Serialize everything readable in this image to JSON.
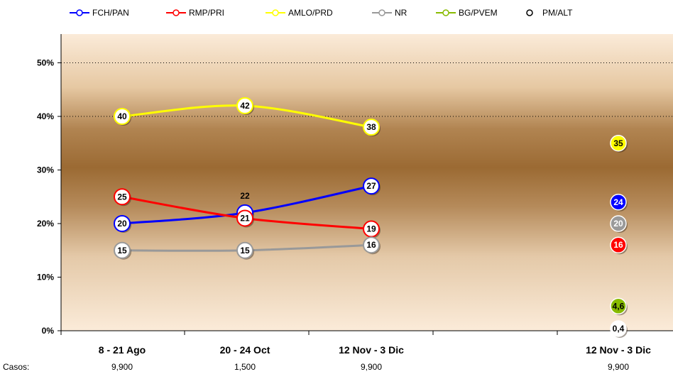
{
  "chart_data": {
    "type": "line",
    "title": "",
    "xlabel": "",
    "ylabel": "",
    "ylim": [
      0,
      55
    ],
    "yticks": [
      0,
      10,
      20,
      30,
      40,
      50
    ],
    "ytick_labels": [
      "0%",
      "10%",
      "20%",
      "30%",
      "40%",
      "50%"
    ],
    "categories": [
      "8 - 21 Ago",
      "20 - 24 Oct",
      "12 Nov - 3 Dic",
      "",
      "12 Nov - 3 Dic"
    ],
    "cases_label": "Casos:",
    "cases": [
      "9,900",
      "1,500",
      "9,900",
      "",
      "9,900"
    ],
    "grid": "dotted lines at 40% and 50%",
    "legend_position": "top",
    "series": [
      {
        "name": "FCH/PAN",
        "color": "#0000ff",
        "marker_fill": "#ffffff",
        "values": [
          20,
          22,
          27,
          null,
          24
        ],
        "labels": [
          "20",
          "22",
          "27",
          "",
          "24"
        ],
        "line_points": 3
      },
      {
        "name": "RMP/PRI",
        "color": "#ff0000",
        "marker_fill": "#ffffff",
        "values": [
          25,
          21,
          19,
          null,
          16
        ],
        "labels": [
          "25",
          "21",
          "19",
          "",
          "16"
        ],
        "line_points": 3
      },
      {
        "name": "AMLO/PRD",
        "color": "#ffff00",
        "marker_fill": "#ffffff",
        "values": [
          40,
          42,
          38,
          null,
          35
        ],
        "labels": [
          "40",
          "42",
          "38",
          "",
          "35"
        ],
        "line_points": 3
      },
      {
        "name": "NR",
        "color": "#999999",
        "marker_fill": "#ffffff",
        "values": [
          15,
          15,
          16,
          null,
          20
        ],
        "labels": [
          "15",
          "15",
          "16",
          "",
          "20"
        ],
        "line_points": 3
      },
      {
        "name": "BG/PVEM",
        "color": "#88bb00",
        "marker_fill": "#88bb00",
        "values": [
          null,
          null,
          null,
          null,
          4.6
        ],
        "labels": [
          "",
          "",
          "",
          "",
          "4,6"
        ],
        "line_points": 0
      },
      {
        "name": "PM/ALT",
        "color": "#000000",
        "marker_fill": "#ffffff",
        "values": [
          null,
          null,
          null,
          null,
          0.4
        ],
        "labels": [
          "",
          "",
          "",
          "",
          "0,4"
        ],
        "line_points": 0
      }
    ]
  }
}
